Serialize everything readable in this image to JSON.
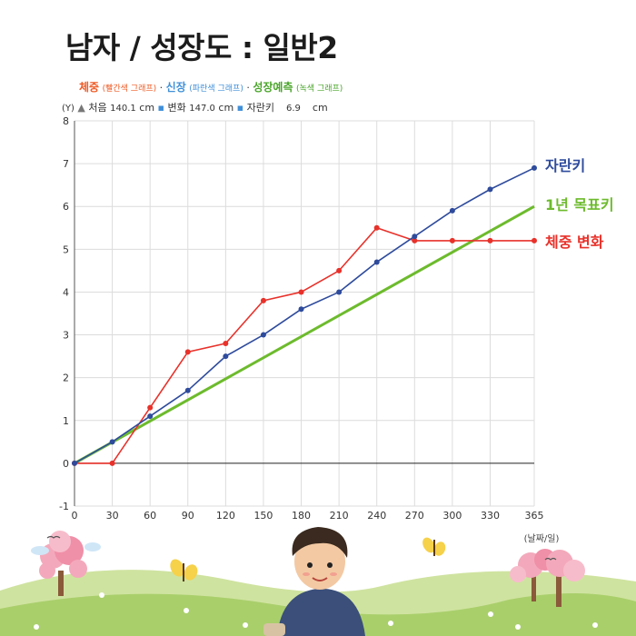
{
  "title": "남자 / 성장도 : 일반2",
  "legend_line": {
    "weight_label": "체중",
    "weight_note": "(빨간색 그래프)",
    "sep1": "·",
    "height_label": "신장",
    "height_note": "(파란색 그래프)",
    "sep2": "·",
    "pred_label": "성장예측",
    "pred_note": "(녹색 그래프)"
  },
  "stats": {
    "y_marker": "(Y)",
    "arrow_icon": "up-arrow-icon",
    "initial_label": "처음",
    "initial_value": "140.1",
    "initial_unit": "cm",
    "change_label": "변화",
    "change_value": "147.0",
    "change_unit": "cm",
    "growth_label": "자란키",
    "growth_value": "6.9",
    "growth_unit": "cm"
  },
  "colors": {
    "weight": "#e8312a",
    "height": "#2e4b9c",
    "goal": "#6dbb2d",
    "legend_blue": "#3f8fd8",
    "legend_orange": "#ee5a24"
  },
  "x_unit_label": "(날짜/일)",
  "chart_data": {
    "type": "line",
    "x": [
      0,
      30,
      60,
      90,
      120,
      150,
      180,
      210,
      240,
      270,
      300,
      330,
      365
    ],
    "x_ticks": [
      0,
      30,
      60,
      90,
      120,
      150,
      180,
      210,
      240,
      270,
      300,
      330,
      365
    ],
    "y_ticks": [
      -1,
      0,
      1,
      2,
      3,
      4,
      5,
      6,
      7,
      8
    ],
    "xlim": [
      0,
      365
    ],
    "ylim": [
      -1,
      8
    ],
    "grid": true,
    "series": [
      {
        "name": "자란키",
        "color": "#2e4b9c",
        "x": [
          0,
          30,
          60,
          90,
          120,
          150,
          180,
          210,
          240,
          270,
          300,
          330,
          365
        ],
        "y": [
          0,
          0.5,
          1.1,
          1.7,
          2.5,
          3.0,
          3.6,
          4.0,
          4.7,
          5.3,
          5.9,
          6.4,
          6.9
        ]
      },
      {
        "name": "1년 목표키",
        "color": "#6dbb2d",
        "x": [
          0,
          365
        ],
        "y": [
          0,
          6.0
        ]
      },
      {
        "name": "체중 변화",
        "color": "#e8312a",
        "x": [
          0,
          30,
          60,
          90,
          120,
          150,
          180,
          210,
          240,
          270,
          300,
          330,
          365
        ],
        "y": [
          0,
          0,
          1.3,
          2.6,
          2.8,
          3.8,
          4.0,
          4.5,
          5.5,
          5.2,
          5.2,
          5.2,
          5.2
        ]
      }
    ]
  }
}
